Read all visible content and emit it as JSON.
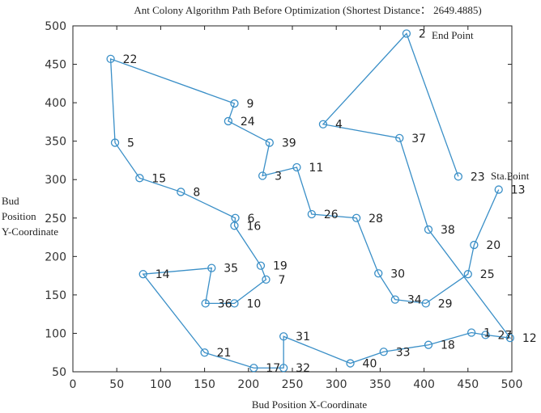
{
  "chart_data": {
    "type": "line",
    "title": "Ant Colony Algorithm Path Before Optimization (Shortest Distance： 2649.4885)",
    "xlabel": "Bud Position X-Coordinate",
    "ylabel": [
      "Bud",
      "Position",
      "Y-Coordinate"
    ],
    "xlim": [
      0,
      500
    ],
    "ylim": [
      50,
      500
    ],
    "xticks": [
      0,
      50,
      100,
      150,
      200,
      250,
      300,
      350,
      400,
      450,
      500
    ],
    "yticks": [
      50,
      100,
      150,
      200,
      250,
      300,
      350,
      400,
      450,
      500
    ],
    "grid": false,
    "line_color": "#3a8fc7",
    "start_label": "Sta.Point",
    "end_label": "End Point",
    "points": [
      {
        "id": "13",
        "x": 485,
        "y": 287
      },
      {
        "id": "20",
        "x": 457,
        "y": 215
      },
      {
        "id": "25",
        "x": 450,
        "y": 177
      },
      {
        "id": "29",
        "x": 402,
        "y": 139
      },
      {
        "id": "34",
        "x": 367,
        "y": 144
      },
      {
        "id": "30",
        "x": 348,
        "y": 178
      },
      {
        "id": "28",
        "x": 323,
        "y": 250
      },
      {
        "id": "26",
        "x": 272,
        "y": 255
      },
      {
        "id": "11",
        "x": 255,
        "y": 316
      },
      {
        "id": "3",
        "x": 216,
        "y": 305
      },
      {
        "id": "39",
        "x": 224,
        "y": 348
      },
      {
        "id": "24",
        "x": 177,
        "y": 376
      },
      {
        "id": "9",
        "x": 184,
        "y": 399
      },
      {
        "id": "22",
        "x": 43,
        "y": 457
      },
      {
        "id": "5",
        "x": 48,
        "y": 348
      },
      {
        "id": "15",
        "x": 76,
        "y": 302
      },
      {
        "id": "8",
        "x": 123,
        "y": 284
      },
      {
        "id": "6",
        "x": 185,
        "y": 250
      },
      {
        "id": "16",
        "x": 184,
        "y": 240
      },
      {
        "id": "19",
        "x": 214,
        "y": 188
      },
      {
        "id": "7",
        "x": 220,
        "y": 170
      },
      {
        "id": "10",
        "x": 184,
        "y": 139
      },
      {
        "id": "36",
        "x": 151,
        "y": 139
      },
      {
        "id": "35",
        "x": 158,
        "y": 185
      },
      {
        "id": "14",
        "x": 80,
        "y": 177
      },
      {
        "id": "21",
        "x": 150,
        "y": 75
      },
      {
        "id": "17",
        "x": 206,
        "y": 55
      },
      {
        "id": "32",
        "x": 240,
        "y": 55
      },
      {
        "id": "31",
        "x": 240,
        "y": 96
      },
      {
        "id": "40",
        "x": 316,
        "y": 61
      },
      {
        "id": "33",
        "x": 354,
        "y": 76
      },
      {
        "id": "18",
        "x": 405,
        "y": 85
      },
      {
        "id": "1",
        "x": 454,
        "y": 101
      },
      {
        "id": "27",
        "x": 470,
        "y": 98
      },
      {
        "id": "12",
        "x": 498,
        "y": 94
      },
      {
        "id": "38",
        "x": 405,
        "y": 235
      },
      {
        "id": "37",
        "x": 372,
        "y": 354
      },
      {
        "id": "4",
        "x": 285,
        "y": 372
      },
      {
        "id": "2",
        "x": 380,
        "y": 490
      },
      {
        "id": "23",
        "x": 439,
        "y": 304
      }
    ]
  }
}
